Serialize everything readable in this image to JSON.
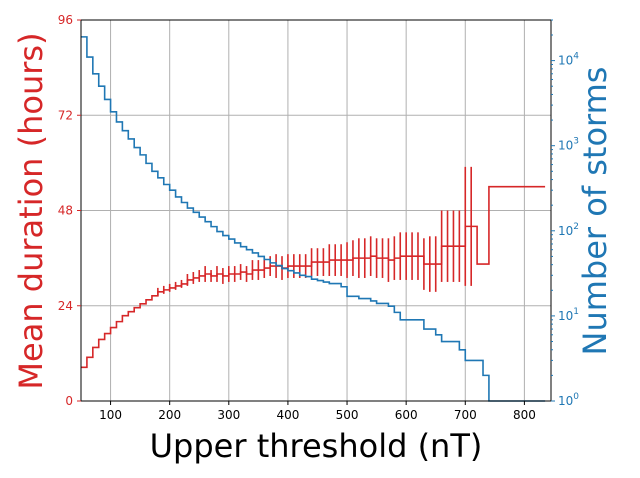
{
  "chart_data": {
    "type": "line",
    "xlabel": "Upper threshold (nT)",
    "ylabel_left": "Mean duration (hours)",
    "ylabel_right": "Number of storms",
    "xlim": [
      50,
      845
    ],
    "ylim_left": [
      0,
      96
    ],
    "ylim_right_log": [
      1,
      30000
    ],
    "right_scale": "log",
    "grid": true,
    "x_ticks": [
      100,
      200,
      300,
      400,
      500,
      600,
      700,
      800
    ],
    "y_left_ticks": [
      0,
      24,
      48,
      72,
      96
    ],
    "y_right_ticks": [
      {
        "value": 1,
        "base": "10",
        "exp": "0"
      },
      {
        "value": 10,
        "base": "10",
        "exp": "1"
      },
      {
        "value": 100,
        "base": "10",
        "exp": "2"
      },
      {
        "value": 1000,
        "base": "10",
        "exp": "3"
      },
      {
        "value": 10000,
        "base": "10",
        "exp": "4"
      }
    ],
    "colors": {
      "left": "#d62728",
      "right": "#1f77b4",
      "grid": "#b0b0b0"
    },
    "series": [
      {
        "axis": "left",
        "style": "step-with-errorbars",
        "x": [
          50,
          60,
          70,
          80,
          90,
          100,
          110,
          120,
          130,
          140,
          150,
          160,
          170,
          180,
          190,
          200,
          210,
          220,
          230,
          240,
          250,
          260,
          270,
          280,
          290,
          300,
          310,
          320,
          330,
          340,
          350,
          360,
          370,
          380,
          390,
          400,
          410,
          420,
          430,
          440,
          450,
          460,
          470,
          480,
          490,
          500,
          510,
          520,
          530,
          540,
          550,
          560,
          570,
          580,
          590,
          600,
          610,
          620,
          630,
          640,
          650,
          660,
          670,
          680,
          690,
          700,
          710,
          720,
          730,
          740,
          800,
          835
        ],
        "values": [
          8.5,
          11,
          13.5,
          15.5,
          17,
          18.5,
          20,
          21.5,
          22.5,
          23.5,
          24.5,
          25.5,
          26.5,
          27.5,
          28,
          28.5,
          29,
          29.5,
          30.5,
          31,
          31.5,
          32,
          31.5,
          32,
          31.5,
          32,
          32,
          32.5,
          32,
          33,
          33,
          33.5,
          34,
          34,
          33.5,
          34,
          34,
          34,
          34,
          35,
          35,
          35,
          35.5,
          35.5,
          35.5,
          35.5,
          36,
          36,
          36,
          36.5,
          36,
          36,
          35.5,
          36,
          36.5,
          36.5,
          36.5,
          36.5,
          34.5,
          34.5,
          34.5,
          39,
          39,
          39,
          39,
          44,
          44,
          34.5,
          34.5,
          54,
          54,
          54
        ],
        "err": [
          0,
          0,
          0,
          0,
          0,
          0,
          0,
          0,
          0,
          0,
          0,
          0,
          0,
          1,
          1,
          1,
          1,
          1,
          1.5,
          1.5,
          1.5,
          2,
          1.5,
          2,
          2,
          2,
          2,
          2,
          2,
          2.5,
          2.5,
          2.5,
          2.5,
          3,
          3,
          3,
          3,
          3,
          3,
          3.5,
          3.5,
          3.5,
          4,
          4,
          4,
          4.5,
          4.5,
          5,
          5,
          5,
          5,
          5,
          5.5,
          5.5,
          6,
          6,
          6,
          6,
          6.5,
          7,
          7,
          9,
          9,
          9,
          9,
          15,
          15,
          0,
          0,
          0,
          0,
          0
        ]
      },
      {
        "axis": "right",
        "style": "step",
        "x": [
          50,
          60,
          70,
          80,
          90,
          100,
          110,
          120,
          130,
          140,
          150,
          160,
          170,
          180,
          190,
          200,
          210,
          220,
          230,
          240,
          250,
          260,
          270,
          280,
          290,
          300,
          310,
          320,
          330,
          340,
          350,
          360,
          370,
          380,
          390,
          400,
          410,
          420,
          430,
          440,
          450,
          460,
          470,
          480,
          490,
          500,
          510,
          520,
          530,
          540,
          550,
          560,
          570,
          580,
          590,
          600,
          610,
          620,
          630,
          640,
          650,
          660,
          670,
          680,
          690,
          700,
          710,
          720,
          730,
          740,
          800,
          835
        ],
        "values": [
          19000,
          11000,
          7000,
          5000,
          3500,
          2500,
          1900,
          1500,
          1200,
          950,
          780,
          620,
          500,
          420,
          350,
          300,
          250,
          215,
          185,
          165,
          145,
          128,
          112,
          98,
          88,
          80,
          72,
          65,
          60,
          55,
          50,
          46,
          42,
          39,
          36,
          34,
          32,
          30,
          29,
          27,
          26,
          25,
          24,
          24,
          22,
          17,
          17,
          16,
          16,
          15,
          14,
          14,
          13,
          11,
          9,
          9,
          9,
          9,
          7,
          7,
          6,
          5,
          5,
          5,
          4,
          3,
          3,
          3,
          2,
          1,
          1,
          1
        ]
      }
    ]
  }
}
